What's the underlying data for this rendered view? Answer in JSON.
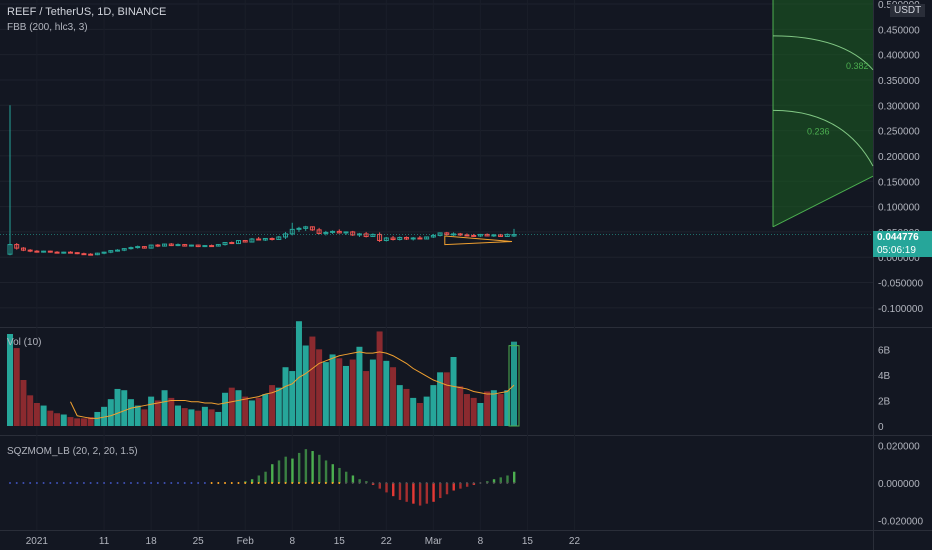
{
  "header": {
    "symbol_line": "REEF / TetherUS, 1D, BINANCE",
    "indicator_line": "FBB (200, hlc3, 3)"
  },
  "price_axis": {
    "currency": "USDT",
    "ticks": [
      "0.500000",
      "0.450000",
      "0.400000",
      "0.350000",
      "0.300000",
      "0.250000",
      "0.200000",
      "0.150000",
      "0.100000",
      "0.050000",
      "0.000000",
      "-0.050000",
      "-0.100000"
    ],
    "last_price": "0.044776",
    "countdown": "05:06:19",
    "last_price_color": "#26a69a"
  },
  "fib_labels": [
    "0.382",
    "0.236"
  ],
  "volume_pane": {
    "label": "Vol (10)",
    "ticks": [
      "6B",
      "4B",
      "2B",
      "0"
    ]
  },
  "squeeze_pane": {
    "label": "SQZMOM_LB (20, 2, 20, 1.5)",
    "ticks": [
      "0.020000",
      "0.000000",
      "-0.020000"
    ]
  },
  "time_axis": {
    "labels": [
      "2021",
      "11",
      "18",
      "25",
      "Feb",
      "8",
      "15",
      "22",
      "Mar",
      "8",
      "15",
      "22"
    ]
  },
  "colors": {
    "up": "#26a69a",
    "down": "#ef5350",
    "vol_up": "#26a69a",
    "vol_down": "#8b2a2f",
    "ma": "#f0a030",
    "fib_fill": "#1b5e20",
    "fib_line": "#4caf50",
    "sqz_pos": "#4caf50",
    "sqz_neg": "#e53935",
    "sqz_dot_off": "#3f51b5",
    "sqz_dot_on": "#ffa726"
  },
  "chart_data": {
    "type": "candlestick",
    "price": [
      {
        "o": 0.006,
        "h": 0.3,
        "l": 0.004,
        "c": 0.025
      },
      {
        "o": 0.025,
        "h": 0.028,
        "l": 0.015,
        "c": 0.018
      },
      {
        "o": 0.018,
        "h": 0.02,
        "l": 0.012,
        "c": 0.014
      },
      {
        "o": 0.014,
        "h": 0.016,
        "l": 0.01,
        "c": 0.012
      },
      {
        "o": 0.012,
        "h": 0.014,
        "l": 0.009,
        "c": 0.011
      },
      {
        "o": 0.011,
        "h": 0.013,
        "l": 0.009,
        "c": 0.012
      },
      {
        "o": 0.012,
        "h": 0.013,
        "l": 0.009,
        "c": 0.01
      },
      {
        "o": 0.01,
        "h": 0.012,
        "l": 0.008,
        "c": 0.009
      },
      {
        "o": 0.009,
        "h": 0.011,
        "l": 0.007,
        "c": 0.01
      },
      {
        "o": 0.01,
        "h": 0.012,
        "l": 0.008,
        "c": 0.009
      },
      {
        "o": 0.009,
        "h": 0.01,
        "l": 0.006,
        "c": 0.007
      },
      {
        "o": 0.007,
        "h": 0.009,
        "l": 0.005,
        "c": 0.006
      },
      {
        "o": 0.006,
        "h": 0.008,
        "l": 0.004,
        "c": 0.005
      },
      {
        "o": 0.005,
        "h": 0.009,
        "l": 0.004,
        "c": 0.008
      },
      {
        "o": 0.008,
        "h": 0.011,
        "l": 0.006,
        "c": 0.01
      },
      {
        "o": 0.01,
        "h": 0.014,
        "l": 0.008,
        "c": 0.013
      },
      {
        "o": 0.013,
        "h": 0.016,
        "l": 0.011,
        "c": 0.014
      },
      {
        "o": 0.014,
        "h": 0.018,
        "l": 0.012,
        "c": 0.017
      },
      {
        "o": 0.017,
        "h": 0.021,
        "l": 0.015,
        "c": 0.019
      },
      {
        "o": 0.019,
        "h": 0.023,
        "l": 0.017,
        "c": 0.021
      },
      {
        "o": 0.021,
        "h": 0.022,
        "l": 0.017,
        "c": 0.018
      },
      {
        "o": 0.018,
        "h": 0.025,
        "l": 0.017,
        "c": 0.024
      },
      {
        "o": 0.024,
        "h": 0.026,
        "l": 0.02,
        "c": 0.022
      },
      {
        "o": 0.022,
        "h": 0.027,
        "l": 0.021,
        "c": 0.026
      },
      {
        "o": 0.026,
        "h": 0.028,
        "l": 0.022,
        "c": 0.023
      },
      {
        "o": 0.023,
        "h": 0.027,
        "l": 0.022,
        "c": 0.025
      },
      {
        "o": 0.025,
        "h": 0.026,
        "l": 0.021,
        "c": 0.022
      },
      {
        "o": 0.022,
        "h": 0.025,
        "l": 0.021,
        "c": 0.024
      },
      {
        "o": 0.024,
        "h": 0.025,
        "l": 0.02,
        "c": 0.021
      },
      {
        "o": 0.021,
        "h": 0.024,
        "l": 0.02,
        "c": 0.023
      },
      {
        "o": 0.023,
        "h": 0.025,
        "l": 0.021,
        "c": 0.022
      },
      {
        "o": 0.022,
        "h": 0.026,
        "l": 0.021,
        "c": 0.025
      },
      {
        "o": 0.025,
        "h": 0.03,
        "l": 0.023,
        "c": 0.029
      },
      {
        "o": 0.029,
        "h": 0.031,
        "l": 0.026,
        "c": 0.027
      },
      {
        "o": 0.027,
        "h": 0.034,
        "l": 0.026,
        "c": 0.033
      },
      {
        "o": 0.033,
        "h": 0.034,
        "l": 0.029,
        "c": 0.03
      },
      {
        "o": 0.03,
        "h": 0.038,
        "l": 0.029,
        "c": 0.036
      },
      {
        "o": 0.036,
        "h": 0.04,
        "l": 0.033,
        "c": 0.034
      },
      {
        "o": 0.034,
        "h": 0.038,
        "l": 0.032,
        "c": 0.037
      },
      {
        "o": 0.037,
        "h": 0.039,
        "l": 0.033,
        "c": 0.035
      },
      {
        "o": 0.035,
        "h": 0.042,
        "l": 0.034,
        "c": 0.04
      },
      {
        "o": 0.04,
        "h": 0.05,
        "l": 0.036,
        "c": 0.046
      },
      {
        "o": 0.046,
        "h": 0.068,
        "l": 0.043,
        "c": 0.055
      },
      {
        "o": 0.055,
        "h": 0.06,
        "l": 0.05,
        "c": 0.057
      },
      {
        "o": 0.057,
        "h": 0.062,
        "l": 0.052,
        "c": 0.06
      },
      {
        "o": 0.06,
        "h": 0.061,
        "l": 0.052,
        "c": 0.054
      },
      {
        "o": 0.054,
        "h": 0.058,
        "l": 0.045,
        "c": 0.047
      },
      {
        "o": 0.047,
        "h": 0.052,
        "l": 0.043,
        "c": 0.049
      },
      {
        "o": 0.049,
        "h": 0.053,
        "l": 0.046,
        "c": 0.051
      },
      {
        "o": 0.051,
        "h": 0.055,
        "l": 0.047,
        "c": 0.048
      },
      {
        "o": 0.048,
        "h": 0.051,
        "l": 0.044,
        "c": 0.05
      },
      {
        "o": 0.05,
        "h": 0.052,
        "l": 0.042,
        "c": 0.044
      },
      {
        "o": 0.044,
        "h": 0.048,
        "l": 0.04,
        "c": 0.046
      },
      {
        "o": 0.046,
        "h": 0.05,
        "l": 0.039,
        "c": 0.041
      },
      {
        "o": 0.041,
        "h": 0.047,
        "l": 0.04,
        "c": 0.045
      },
      {
        "o": 0.045,
        "h": 0.049,
        "l": 0.03,
        "c": 0.033
      },
      {
        "o": 0.033,
        "h": 0.04,
        "l": 0.031,
        "c": 0.038
      },
      {
        "o": 0.038,
        "h": 0.042,
        "l": 0.033,
        "c": 0.035
      },
      {
        "o": 0.035,
        "h": 0.041,
        "l": 0.033,
        "c": 0.039
      },
      {
        "o": 0.039,
        "h": 0.041,
        "l": 0.034,
        "c": 0.036
      },
      {
        "o": 0.036,
        "h": 0.04,
        "l": 0.033,
        "c": 0.038
      },
      {
        "o": 0.038,
        "h": 0.042,
        "l": 0.035,
        "c": 0.036
      },
      {
        "o": 0.036,
        "h": 0.041,
        "l": 0.035,
        "c": 0.04
      },
      {
        "o": 0.04,
        "h": 0.046,
        "l": 0.038,
        "c": 0.043
      },
      {
        "o": 0.043,
        "h": 0.049,
        "l": 0.041,
        "c": 0.048
      },
      {
        "o": 0.048,
        "h": 0.05,
        "l": 0.043,
        "c": 0.045
      },
      {
        "o": 0.045,
        "h": 0.049,
        "l": 0.042,
        "c": 0.046
      },
      {
        "o": 0.046,
        "h": 0.048,
        "l": 0.042,
        "c": 0.044
      },
      {
        "o": 0.044,
        "h": 0.047,
        "l": 0.041,
        "c": 0.043
      },
      {
        "o": 0.043,
        "h": 0.046,
        "l": 0.04,
        "c": 0.042
      },
      {
        "o": 0.042,
        "h": 0.046,
        "l": 0.04,
        "c": 0.045
      },
      {
        "o": 0.045,
        "h": 0.047,
        "l": 0.041,
        "c": 0.042
      },
      {
        "o": 0.042,
        "h": 0.046,
        "l": 0.04,
        "c": 0.044
      },
      {
        "o": 0.044,
        "h": 0.046,
        "l": 0.04,
        "c": 0.041
      },
      {
        "o": 0.041,
        "h": 0.047,
        "l": 0.04,
        "c": 0.045
      },
      {
        "o": 0.042,
        "h": 0.056,
        "l": 0.04,
        "c": 0.0448
      }
    ],
    "volume_billions": [
      7.2,
      6.1,
      3.6,
      2.4,
      1.8,
      1.6,
      1.2,
      1.0,
      0.9,
      0.7,
      0.6,
      0.6,
      0.7,
      1.1,
      1.5,
      2.1,
      2.9,
      2.8,
      2.1,
      1.6,
      1.3,
      2.3,
      2.0,
      2.8,
      2.2,
      1.6,
      1.4,
      1.3,
      1.2,
      1.5,
      1.3,
      1.1,
      2.6,
      3.0,
      2.8,
      2.3,
      2.0,
      2.2,
      2.5,
      3.2,
      3.0,
      4.6,
      4.3,
      8.2,
      6.3,
      7.0,
      6.0,
      5.0,
      5.6,
      5.3,
      4.7,
      5.2,
      6.2,
      4.3,
      5.2,
      7.4,
      5.1,
      4.6,
      3.2,
      2.9,
      2.2,
      1.8,
      2.3,
      3.2,
      4.2,
      4.2,
      5.4,
      3.1,
      2.5,
      2.2,
      1.8,
      2.7,
      2.8,
      2.5,
      2.8,
      6.6
    ],
    "volume_ma_billions": [
      null,
      null,
      null,
      null,
      null,
      null,
      null,
      null,
      null,
      1.9,
      0.8,
      0.7,
      0.6,
      0.6,
      0.7,
      0.8,
      1.0,
      1.2,
      1.4,
      1.5,
      1.6,
      1.7,
      1.8,
      1.9,
      2.0,
      2.0,
      2.0,
      1.9,
      1.9,
      1.8,
      1.8,
      1.7,
      1.8,
      1.9,
      2.0,
      2.1,
      2.2,
      2.3,
      2.5,
      2.6,
      2.8,
      3.1,
      3.3,
      3.8,
      4.1,
      4.5,
      4.9,
      5.1,
      5.3,
      5.5,
      5.6,
      5.7,
      5.8,
      5.7,
      5.7,
      5.8,
      5.7,
      5.5,
      5.2,
      4.9,
      4.5,
      4.2,
      3.9,
      3.6,
      3.4,
      3.2,
      3.1,
      3.0,
      2.9,
      2.7,
      2.6,
      2.5,
      2.5,
      2.6,
      2.7,
      3.2
    ],
    "squeeze_momentum": [
      0,
      0,
      0,
      0,
      0,
      0,
      0,
      0,
      0,
      0,
      0,
      0,
      0,
      0,
      0,
      0,
      0,
      0,
      0,
      0,
      0,
      0,
      0,
      0,
      0,
      0,
      0,
      0,
      0,
      0,
      0,
      0,
      0,
      0,
      0,
      0.001,
      0.002,
      0.004,
      0.006,
      0.01,
      0.012,
      0.014,
      0.013,
      0.016,
      0.018,
      0.017,
      0.015,
      0.012,
      0.01,
      0.008,
      0.006,
      0.004,
      0.002,
      0.001,
      -0.001,
      -0.003,
      -0.005,
      -0.007,
      -0.009,
      -0.01,
      -0.011,
      -0.012,
      -0.011,
      -0.01,
      -0.008,
      -0.006,
      -0.004,
      -0.003,
      -0.002,
      -0.001,
      0.0,
      0.001,
      0.002,
      0.003,
      0.004,
      0.006
    ],
    "fib_levels": [
      0.236,
      0.382
    ],
    "price_range": [
      -0.12,
      0.5
    ],
    "volume_range_billions": [
      0,
      7.2
    ],
    "squeeze_range": [
      -0.025,
      0.025
    ]
  }
}
